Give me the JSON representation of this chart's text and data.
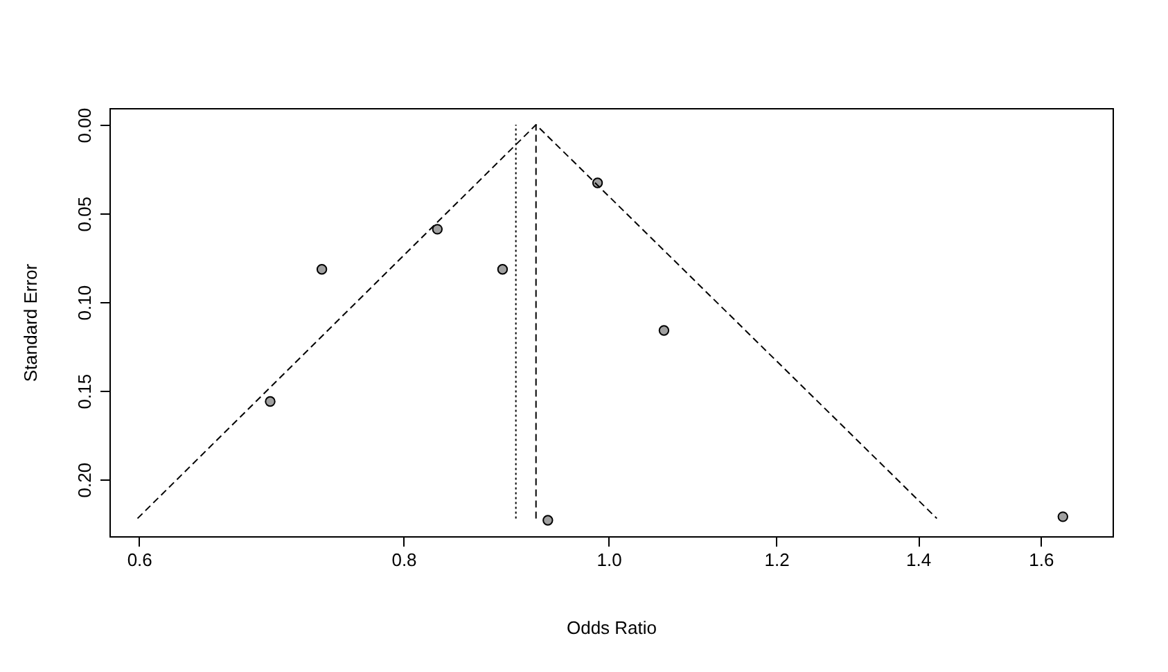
{
  "chart_data": {
    "type": "scatter",
    "xlabel": "Odds Ratio",
    "ylabel": "Standard Error",
    "log": "x",
    "grid": false,
    "marker": "circle",
    "xlim": [
      0.581,
      1.73
    ],
    "ylim": [
      0.232,
      -0.0094
    ],
    "xticks": [
      0.6,
      0.8,
      {
        "value": 1,
        "label": "1.0"
      },
      1.2,
      1.4,
      1.6
    ],
    "yticks": [
      {
        "value": 0,
        "label": "0.00"
      },
      {
        "value": 0.05,
        "label": "0.05"
      },
      {
        "value": 0.1,
        "label": "0.10"
      },
      {
        "value": 0.15,
        "label": "0.15"
      },
      {
        "value": 0.2,
        "label": "0.20"
      }
    ],
    "series": [
      {
        "color": "#a0a0a0",
        "x": [
          0.732,
          0.692,
          0.83,
          0.891,
          0.936,
          0.988,
          1.062,
          1.639
        ],
        "values": [
          0.0815,
          0.156,
          0.0589,
          0.0815,
          0.223,
          0.0328,
          0.116,
          0.221
        ]
      },
      {
        "type": "line",
        "marker": "none",
        "color": "#000000",
        "line_style": "dashed",
        "x": [
          0.599,
          0.924,
          1.429
        ],
        "values": [
          0.222,
          0,
          0.222
        ]
      }
    ],
    "ref_lines": [
      {
        "axis": "x",
        "value": 0.924,
        "line_style": "dashed",
        "color": "#000000"
      },
      {
        "axis": "x",
        "value": 0.904,
        "line_style": "dotted",
        "color": "#000000"
      }
    ]
  }
}
